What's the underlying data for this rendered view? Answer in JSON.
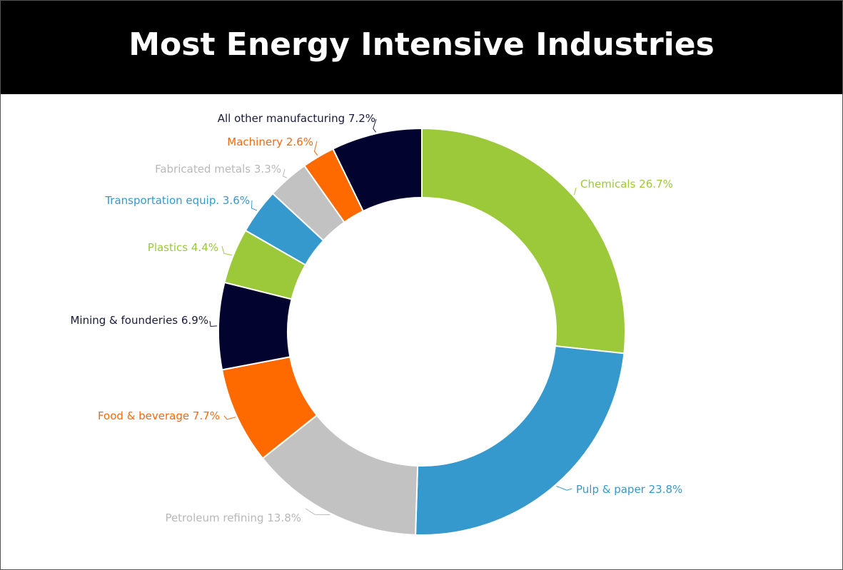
{
  "header": {
    "title": "Most Energy Intensive Industries"
  },
  "chart_data": {
    "type": "pie",
    "donut": true,
    "title": "Most Energy Intensive Industries",
    "slices": [
      {
        "name": "Chemicals",
        "value": 26.7,
        "label": "Chemicals 26.7%",
        "color": "#9BC93A",
        "label_color": "#9BC93A"
      },
      {
        "name": "Pulp & paper",
        "value": 23.8,
        "label": "Pulp & paper 23.8%",
        "color": "#3599CD",
        "label_color": "#3599CD"
      },
      {
        "name": "Petroleum refining",
        "value": 13.8,
        "label": "Petroleum refining 13.8%",
        "color": "#C2C2C2",
        "label_color": "#B8B8B8"
      },
      {
        "name": "Food & beverage",
        "value": 7.7,
        "label": "Food & beverage 7.7%",
        "color": "#FF6A00",
        "label_color": "#F26A10"
      },
      {
        "name": "Mining & founderies",
        "value": 6.9,
        "label": "Mining & founderies 6.9%",
        "color": "#02032F",
        "label_color": "#1A1A3A"
      },
      {
        "name": "Plastics",
        "value": 4.4,
        "label": "Plastics 4.4%",
        "color": "#9BC93A",
        "label_color": "#9BC93A"
      },
      {
        "name": "Transportation equip.",
        "value": 3.6,
        "label": "Transportation equip. 3.6%",
        "color": "#3599CD",
        "label_color": "#3599CD"
      },
      {
        "name": "Fabricated metals",
        "value": 3.3,
        "label": "Fabricated metals 3.3%",
        "color": "#C2C2C2",
        "label_color": "#B8B8B8"
      },
      {
        "name": "Machinery",
        "value": 2.6,
        "label": "Machinery 2.6%",
        "color": "#FF6A00",
        "label_color": "#F26A10"
      },
      {
        "name": "All other manufacturing",
        "value": 7.2,
        "label": "All other manufacturing 7.2%",
        "color": "#02032F",
        "label_color": "#1A1A3A"
      }
    ]
  }
}
